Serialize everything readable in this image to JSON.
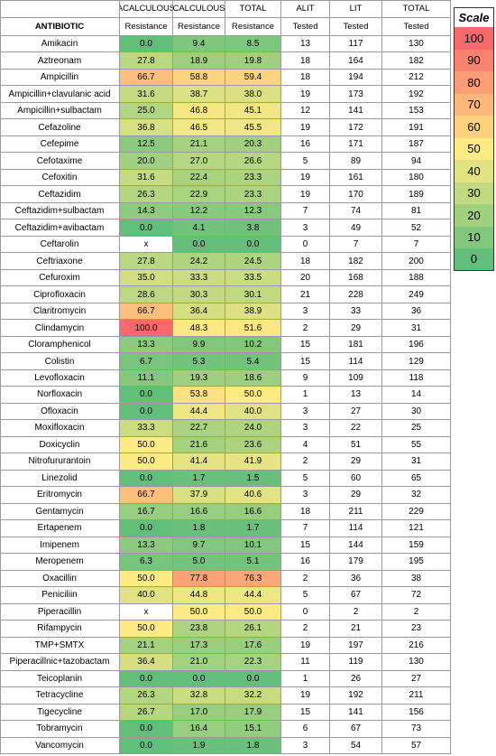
{
  "table": {
    "header": [
      [
        "ACALCULOUS",
        "CALCULOUS",
        "TOTAL",
        "ALIT",
        "LIT",
        "TOTAL"
      ],
      [
        "ANTIBIOTIC",
        "Resistance",
        "Resistance",
        "Resistance",
        "Tested",
        "Tested",
        "Tested"
      ]
    ],
    "rows": [
      [
        "Amikacin",
        "0.0",
        "9.4",
        "8.5",
        13,
        117,
        130
      ],
      [
        "Aztreonam",
        "27.8",
        "18.9",
        "19.8",
        18,
        164,
        182
      ],
      [
        "Ampicillin",
        "66.7",
        "58.8",
        "59.4",
        18,
        194,
        212
      ],
      [
        "Ampicillin+clavulanic acid",
        "31.6",
        "38.7",
        "38.0",
        19,
        173,
        192
      ],
      [
        "Ampicillin+sulbactam",
        "25.0",
        "46.8",
        "45.1",
        12,
        141,
        153
      ],
      [
        "Cefazoline",
        "36.8",
        "46.5",
        "45.5",
        19,
        172,
        191
      ],
      [
        "Cefepime",
        "12.5",
        "21.1",
        "20.3",
        16,
        171,
        187
      ],
      [
        "Cefotaxime",
        "20.0",
        "27.0",
        "26.6",
        5,
        89,
        94
      ],
      [
        "Cefoxitin",
        "31.6",
        "22.4",
        "23.3",
        19,
        161,
        180
      ],
      [
        "Ceftazidim",
        "26.3",
        "22.9",
        "23.3",
        19,
        170,
        189
      ],
      [
        "Ceftazidim+sulbactam",
        "14.3",
        "12.2",
        "12.3",
        7,
        74,
        81
      ],
      [
        "Ceftazidim+avibactam",
        "0.0",
        "4.1",
        "3.8",
        3,
        49,
        52
      ],
      [
        "Ceftarolin",
        "x",
        "0.0",
        "0.0",
        0,
        7,
        7
      ],
      [
        "Ceftriaxone",
        "27.8",
        "24.2",
        "24.5",
        18,
        182,
        200
      ],
      [
        "Cefuroxim",
        "35.0",
        "33.3",
        "33.5",
        20,
        168,
        188
      ],
      [
        "Ciprofloxacin",
        "28.6",
        "30.3",
        "30.1",
        21,
        228,
        249
      ],
      [
        "Claritromycin",
        "66.7",
        "36.4",
        "38.9",
        3,
        33,
        36
      ],
      [
        "Clindamycin",
        "100.0",
        "48.3",
        "51.6",
        2,
        29,
        31
      ],
      [
        "Cloramphenicol",
        "13.3",
        "9.9",
        "10.2",
        15,
        181,
        196
      ],
      [
        "Colistin",
        "6.7",
        "5.3",
        "5.4",
        15,
        114,
        129
      ],
      [
        "Levofloxacin",
        "11.1",
        "19.3",
        "18.6",
        9,
        109,
        118
      ],
      [
        "Norfloxacin",
        "0.0",
        "53.8",
        "50.0",
        1,
        13,
        14
      ],
      [
        "Ofloxacin",
        "0.0",
        "44.4",
        "40.0",
        3,
        27,
        30
      ],
      [
        "Moxifloxacin",
        "33.3",
        "22.7",
        "24.0",
        3,
        22,
        25
      ],
      [
        "Doxicyclin",
        "50.0",
        "21.6",
        "23.6",
        4,
        51,
        55
      ],
      [
        "Nitrofururantoin",
        "50.0",
        "41.4",
        "41.9",
        2,
        29,
        31
      ],
      [
        "Linezolid",
        "0.0",
        "1.7",
        "1.5",
        5,
        60,
        65
      ],
      [
        "Eritromycin",
        "66.7",
        "37.9",
        "40.6",
        3,
        29,
        32
      ],
      [
        "Gentamycin",
        "16.7",
        "16.6",
        "16.6",
        18,
        211,
        229
      ],
      [
        "Ertapenem",
        "0.0",
        "1.8",
        "1.7",
        7,
        114,
        121
      ],
      [
        "Imipenem",
        "13.3",
        "9.7",
        "10.1",
        15,
        144,
        159
      ],
      [
        "Meropenem",
        "6.3",
        "5.0",
        "5.1",
        16,
        179,
        195
      ],
      [
        "Oxacillin",
        "50.0",
        "77.8",
        "76.3",
        2,
        36,
        38
      ],
      [
        "Peniciliin",
        "40.0",
        "44.8",
        "44.4",
        5,
        67,
        72
      ],
      [
        "Piperacillin",
        "x",
        "50.0",
        "50.0",
        0,
        2,
        2
      ],
      [
        "Rifampycin",
        "50.0",
        "23.8",
        "26.1",
        2,
        21,
        23
      ],
      [
        "TMP+SMTX",
        "21.1",
        "17.3",
        "17.6",
        19,
        197,
        216
      ],
      [
        "Piperacillnic+tazobactam",
        "36.4",
        "21.0",
        "22.3",
        11,
        119,
        130
      ],
      [
        "Teicoplanin",
        "0.0",
        "0.0",
        "0.0",
        1,
        26,
        27
      ],
      [
        "Tetracycline",
        "26.3",
        "32.8",
        "32.2",
        19,
        192,
        211
      ],
      [
        "Tigecycline",
        "26.7",
        "17.0",
        "17.9",
        15,
        141,
        156
      ],
      [
        "Tobramycin",
        "0.0",
        "16.4",
        "15.1",
        6,
        67,
        73
      ],
      [
        "Vancomycin",
        "0.0",
        "1.9",
        "1.8",
        3,
        54,
        57
      ]
    ]
  },
  "scale": {
    "title": "Scale",
    "steps": [
      {
        "value": 100,
        "color": "#f8696b"
      },
      {
        "value": 90,
        "color": "#f98370"
      },
      {
        "value": 80,
        "color": "#fb9d75"
      },
      {
        "value": 70,
        "color": "#fcb77a"
      },
      {
        "value": 60,
        "color": "#fed17f"
      },
      {
        "value": 50,
        "color": "#ffeb84"
      },
      {
        "value": 40,
        "color": "#e0e283"
      },
      {
        "value": 30,
        "color": "#c1d981"
      },
      {
        "value": 20,
        "color": "#a1d07f"
      },
      {
        "value": 10,
        "color": "#82c77d"
      },
      {
        "value": 0,
        "color": "#63be7b"
      }
    ]
  }
}
